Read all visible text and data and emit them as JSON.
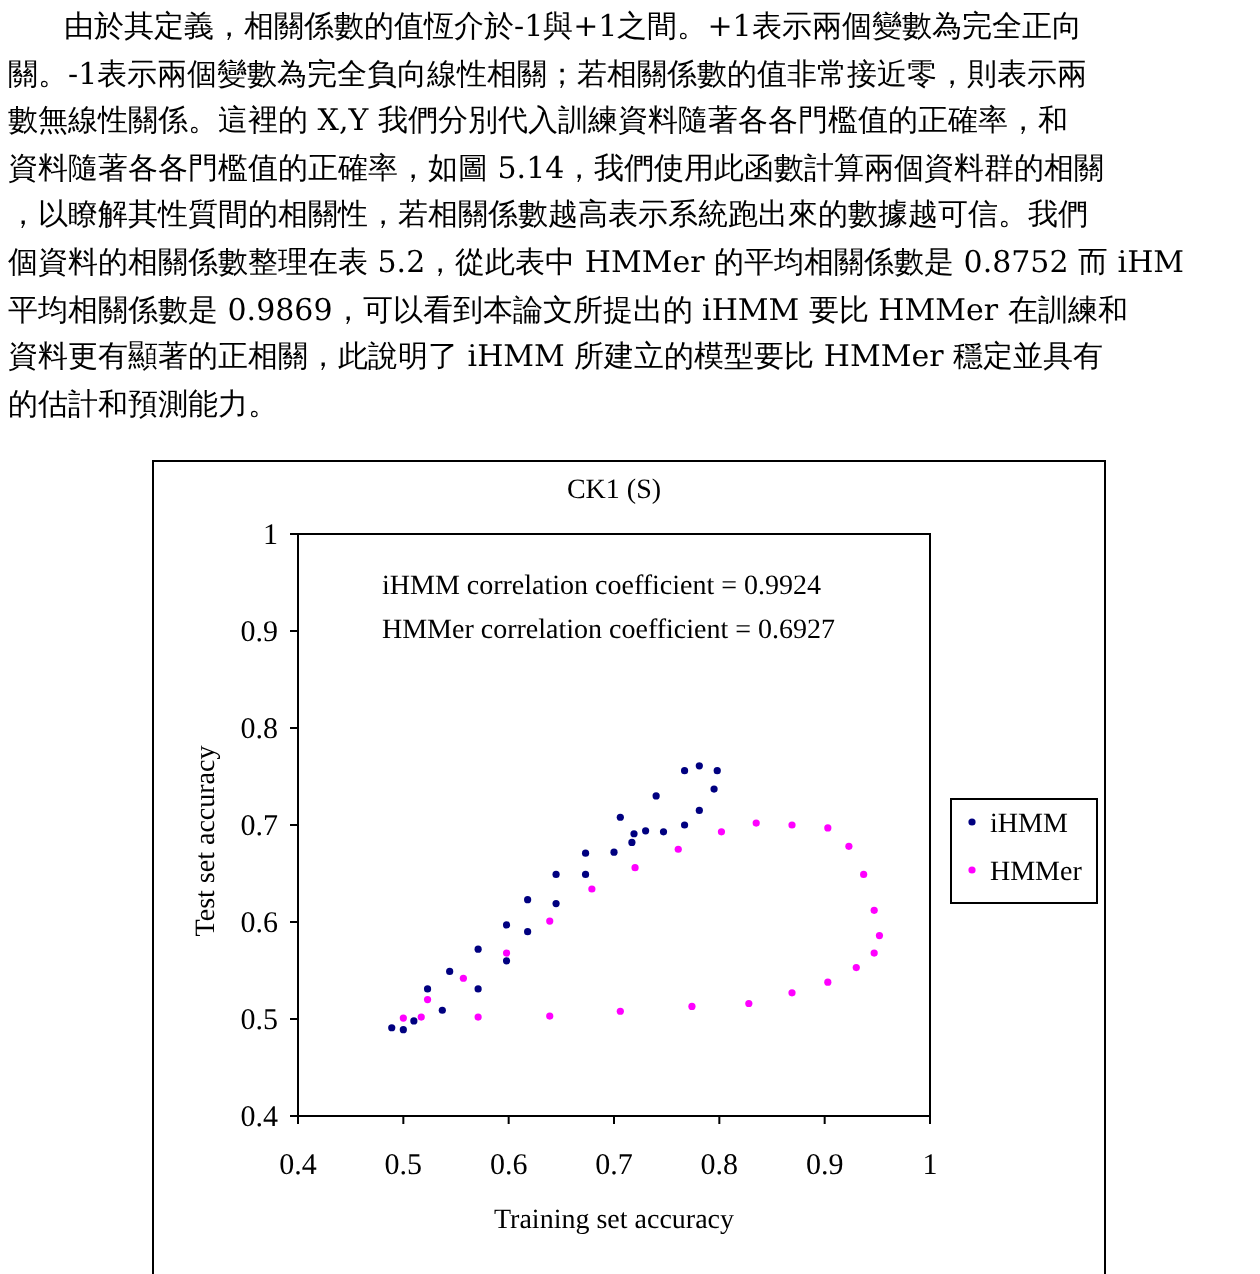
{
  "chart_data": {
    "type": "scatter",
    "title": "CK1 (S)",
    "xlabel": "Training set accuracy",
    "ylabel": "Test set accuracy",
    "xlim": [
      0.4,
      1
    ],
    "ylim": [
      0.4,
      1
    ],
    "xticks": [
      0.4,
      0.5,
      0.6,
      0.7,
      0.8,
      0.9,
      1
    ],
    "yticks": [
      0.4,
      0.5,
      0.6,
      0.7,
      0.8,
      0.9,
      1
    ],
    "legend": "right",
    "marker": "circle",
    "grid": false,
    "annotations": [
      "由於其定義，相關係數的值恆介於-1與+1之間。+1表示兩個變數為完全正向",
      "關。-1表示兩個變數為完全負向線性相關；若相關係數的值非常接近零，則表示兩",
      "數無線性關係。這裡的 X,Y 我們分別代入訓練資料隨著各各門檻值的正確率，和",
      "資料隨著各各門檻值的正確率，如圖 5.14，我們使用此函數計算兩個資料群的相關",
      "，以瞭解其性質間的相關性，若相關係數越高表示系統跑出來的數據越可信。我們",
      "個資料的相關係數整理在表 5.2，從此表中 HMMer 的平均相關係數是 0.8752 而 iHM",
      "平均相關係數是 0.9869，可以看到本論文所提出的 iHMM 要比 HMMer 在訓練和",
      "資料更有顯著的正相關，此說明了 iHMM 所建立的模型要比 HMMer 穩定並具有",
      "的估計和預測能力。",
      "iHMM correlation coefficient = 0.9924",
      "HMMer correlation coefficient = 0.6927"
    ],
    "series": [
      {
        "name": "iHMM",
        "color": "#000080",
        "x": [
          0.489,
          0.523,
          0.544,
          0.571,
          0.598,
          0.618,
          0.645,
          0.673,
          0.706,
          0.74,
          0.767,
          0.781,
          0.798,
          0.795,
          0.781,
          0.767,
          0.747,
          0.73,
          0.719,
          0.717,
          0.7,
          0.673,
          0.645,
          0.618,
          0.598,
          0.571,
          0.537,
          0.51,
          0.5
        ],
        "values": [
          0.491,
          0.531,
          0.549,
          0.572,
          0.597,
          0.623,
          0.649,
          0.671,
          0.708,
          0.73,
          0.756,
          0.761,
          0.756,
          0.737,
          0.715,
          0.7,
          0.693,
          0.694,
          0.691,
          0.682,
          0.672,
          0.649,
          0.619,
          0.59,
          0.56,
          0.531,
          0.509,
          0.498,
          0.489
        ]
      },
      {
        "name": "HMMer",
        "color": "#ff00ff",
        "x": [
          0.5,
          0.523,
          0.557,
          0.598,
          0.639,
          0.679,
          0.72,
          0.761,
          0.802,
          0.835,
          0.869,
          0.903,
          0.923,
          0.937,
          0.947,
          0.952,
          0.947,
          0.93,
          0.903,
          0.869,
          0.828,
          0.774,
          0.706,
          0.639,
          0.571,
          0.517
        ],
        "values": [
          0.501,
          0.52,
          0.542,
          0.568,
          0.601,
          0.634,
          0.656,
          0.675,
          0.693,
          0.702,
          0.7,
          0.697,
          0.678,
          0.649,
          0.612,
          0.586,
          0.568,
          0.553,
          0.538,
          0.527,
          0.516,
          0.513,
          0.508,
          0.503,
          0.502,
          0.502
        ]
      }
    ]
  }
}
